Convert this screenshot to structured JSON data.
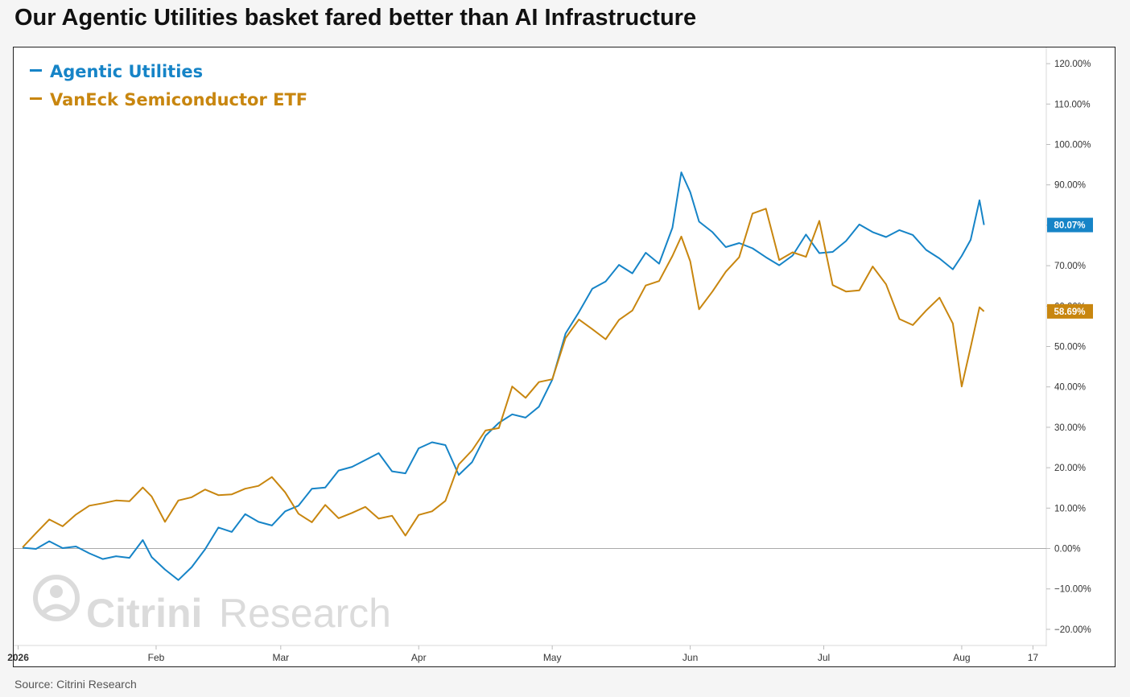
{
  "title": "Our Agentic Utilities basket fared better than AI Infrastructure",
  "source": "Source: Citrini Research",
  "watermark": {
    "part1": "Citrini",
    "part2": "Research"
  },
  "colors": {
    "agentic": "#1684c7",
    "vaneck": "#c8860f",
    "zero_line": "#aaaaaa"
  },
  "chart_data": {
    "type": "line",
    "title": "Our Agentic Utilities basket fared better than AI Infrastructure",
    "legend_position": "top-left",
    "y_unit": "%",
    "ylim": [
      -24,
      124
    ],
    "y_ticks": [
      -20,
      -10,
      0,
      10,
      20,
      30,
      40,
      50,
      60,
      70,
      80,
      90,
      100,
      110,
      120
    ],
    "y_tick_labels": [
      "−20.00%",
      "−10.00%",
      "0.00%",
      "10.00%",
      "20.00%",
      "30.00%",
      "40.00%",
      "50.00%",
      "60.00%",
      "70.00%",
      "80.00%",
      "90.00%",
      "100.00%",
      "110.00%",
      "120.00%"
    ],
    "x_ticks": [
      {
        "label": "2026",
        "date": "2026-01-01",
        "bold": true
      },
      {
        "label": "Feb",
        "date": "2026-02-01"
      },
      {
        "label": "Mar",
        "date": "2026-03-01"
      },
      {
        "label": "Apr",
        "date": "2026-04-01"
      },
      {
        "label": "May",
        "date": "2026-05-01"
      },
      {
        "label": "Jun",
        "date": "2026-06-01"
      },
      {
        "label": "Jul",
        "date": "2026-07-01"
      },
      {
        "label": "Aug",
        "date": "2026-08-01"
      },
      {
        "label": "17",
        "date": "2026-08-17"
      }
    ],
    "x_range": [
      "2025-12-31",
      "2026-08-20"
    ],
    "series": [
      {
        "name": "Agentic Utilities",
        "end_label": "80.07%",
        "x": [
          "2026-01-02",
          "2026-01-05",
          "2026-01-08",
          "2026-01-11",
          "2026-01-14",
          "2026-01-17",
          "2026-01-20",
          "2026-01-23",
          "2026-01-26",
          "2026-01-29",
          "2026-01-31",
          "2026-02-03",
          "2026-02-06",
          "2026-02-09",
          "2026-02-12",
          "2026-02-15",
          "2026-02-18",
          "2026-02-21",
          "2026-02-24",
          "2026-02-27",
          "2026-03-02",
          "2026-03-05",
          "2026-03-08",
          "2026-03-11",
          "2026-03-14",
          "2026-03-17",
          "2026-03-20",
          "2026-03-23",
          "2026-03-26",
          "2026-03-29",
          "2026-04-01",
          "2026-04-04",
          "2026-04-07",
          "2026-04-10",
          "2026-04-13",
          "2026-04-16",
          "2026-04-19",
          "2026-04-22",
          "2026-04-25",
          "2026-04-28",
          "2026-05-01",
          "2026-05-04",
          "2026-05-07",
          "2026-05-10",
          "2026-05-13",
          "2026-05-16",
          "2026-05-19",
          "2026-05-22",
          "2026-05-25",
          "2026-05-28",
          "2026-05-30",
          "2026-06-01",
          "2026-06-03",
          "2026-06-06",
          "2026-06-09",
          "2026-06-12",
          "2026-06-15",
          "2026-06-18",
          "2026-06-21",
          "2026-06-24",
          "2026-06-27",
          "2026-06-30",
          "2026-07-03",
          "2026-07-06",
          "2026-07-09",
          "2026-07-12",
          "2026-07-15",
          "2026-07-18",
          "2026-07-21",
          "2026-07-24",
          "2026-07-27",
          "2026-07-30",
          "2026-08-01",
          "2026-08-03",
          "2026-08-05",
          "2026-08-06"
        ],
        "y": [
          0.2,
          -0.1,
          1.8,
          0.1,
          0.5,
          -1.2,
          -2.6,
          -1.9,
          -2.3,
          2.1,
          -2.1,
          -5.2,
          -7.8,
          -4.6,
          -0.2,
          5.2,
          4.1,
          8.5,
          6.6,
          5.7,
          9.2,
          10.6,
          14.8,
          15.1,
          19.3,
          20.2,
          21.9,
          23.6,
          19.1,
          18.6,
          24.8,
          26.3,
          25.6,
          18.2,
          21.4,
          27.9,
          31.1,
          33.2,
          32.4,
          35.1,
          41.8,
          53.2,
          58.5,
          64.3,
          66.1,
          70.2,
          68.1,
          73.2,
          70.5,
          79.4,
          93.1,
          88.2,
          80.9,
          78.3,
          74.6,
          75.6,
          74.3,
          72.1,
          70.1,
          72.5,
          77.7,
          73.1,
          73.4,
          76.1,
          80.2,
          78.3,
          77.1,
          78.8,
          77.6,
          73.9,
          71.8,
          69.1,
          72.4,
          76.4,
          86.2,
          80.07
        ]
      },
      {
        "name": "VanEck Semiconductor ETF",
        "end_label": "58.69%",
        "x": [
          "2026-01-02",
          "2026-01-05",
          "2026-01-08",
          "2026-01-11",
          "2026-01-14",
          "2026-01-17",
          "2026-01-20",
          "2026-01-23",
          "2026-01-26",
          "2026-01-29",
          "2026-01-31",
          "2026-02-03",
          "2026-02-06",
          "2026-02-09",
          "2026-02-12",
          "2026-02-15",
          "2026-02-18",
          "2026-02-21",
          "2026-02-24",
          "2026-02-27",
          "2026-03-02",
          "2026-03-05",
          "2026-03-08",
          "2026-03-11",
          "2026-03-14",
          "2026-03-17",
          "2026-03-20",
          "2026-03-23",
          "2026-03-26",
          "2026-03-29",
          "2026-04-01",
          "2026-04-04",
          "2026-04-07",
          "2026-04-10",
          "2026-04-13",
          "2026-04-16",
          "2026-04-19",
          "2026-04-22",
          "2026-04-25",
          "2026-04-28",
          "2026-05-01",
          "2026-05-04",
          "2026-05-07",
          "2026-05-10",
          "2026-05-13",
          "2026-05-16",
          "2026-05-19",
          "2026-05-22",
          "2026-05-25",
          "2026-05-28",
          "2026-05-30",
          "2026-06-01",
          "2026-06-03",
          "2026-06-06",
          "2026-06-09",
          "2026-06-12",
          "2026-06-15",
          "2026-06-18",
          "2026-06-21",
          "2026-06-24",
          "2026-06-27",
          "2026-06-30",
          "2026-07-03",
          "2026-07-06",
          "2026-07-09",
          "2026-07-12",
          "2026-07-15",
          "2026-07-18",
          "2026-07-21",
          "2026-07-24",
          "2026-07-27",
          "2026-07-30",
          "2026-08-01",
          "2026-08-03",
          "2026-08-05",
          "2026-08-06"
        ],
        "y": [
          0.3,
          3.8,
          7.2,
          5.5,
          8.4,
          10.6,
          11.2,
          11.9,
          11.7,
          15.1,
          12.9,
          6.6,
          11.9,
          12.7,
          14.6,
          13.2,
          13.4,
          14.8,
          15.5,
          17.7,
          13.9,
          8.6,
          6.5,
          10.8,
          7.5,
          8.8,
          10.3,
          7.4,
          8.1,
          3.2,
          8.3,
          9.2,
          11.8,
          20.8,
          24.3,
          29.2,
          29.8,
          40.1,
          37.3,
          41.2,
          41.9,
          52.1,
          56.7,
          54.3,
          51.8,
          56.6,
          58.9,
          65.1,
          66.2,
          72.4,
          77.2,
          71.1,
          59.2,
          63.6,
          68.5,
          72.1,
          82.9,
          84.1,
          71.4,
          73.3,
          72.2,
          81.1,
          65.2,
          63.6,
          63.9,
          69.8,
          65.4,
          56.8,
          55.3,
          58.9,
          62.1,
          55.7,
          40.1,
          49.8,
          59.7,
          58.69
        ]
      }
    ]
  }
}
